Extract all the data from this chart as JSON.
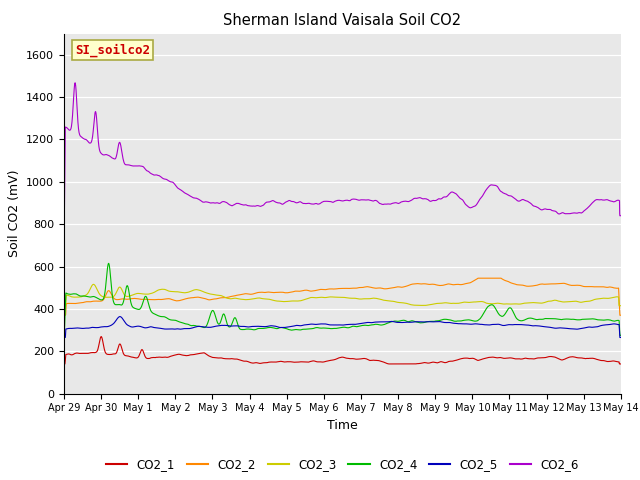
{
  "title": "Sherman Island Vaisala Soil CO2",
  "xlabel": "Time",
  "ylabel": "Soil CO2 (mV)",
  "ylim": [
    0,
    1700
  ],
  "xlim": [
    0,
    15
  ],
  "yticks": [
    0,
    200,
    400,
    600,
    800,
    1000,
    1200,
    1400,
    1600
  ],
  "xtick_labels": [
    "Apr 29",
    "Apr 30",
    "May 1",
    "May 2",
    "May 3",
    "May 4",
    "May 5",
    "May 6",
    "May 7",
    "May 8",
    "May 9",
    "May 10",
    "May 11",
    "May 12",
    "May 13",
    "May 14"
  ],
  "colors": {
    "CO2_1": "#cc0000",
    "CO2_2": "#ff8800",
    "CO2_3": "#cccc00",
    "CO2_4": "#00bb00",
    "CO2_5": "#0000bb",
    "CO2_6": "#aa00cc"
  },
  "annotation_text": "SI_soilco2",
  "annotation_color": "#cc0000",
  "annotation_bg": "#ffffcc",
  "annotation_border": "#aaaa44",
  "background_color": "#e8e8e8",
  "n_points": 3000,
  "duration_days": 15.0
}
